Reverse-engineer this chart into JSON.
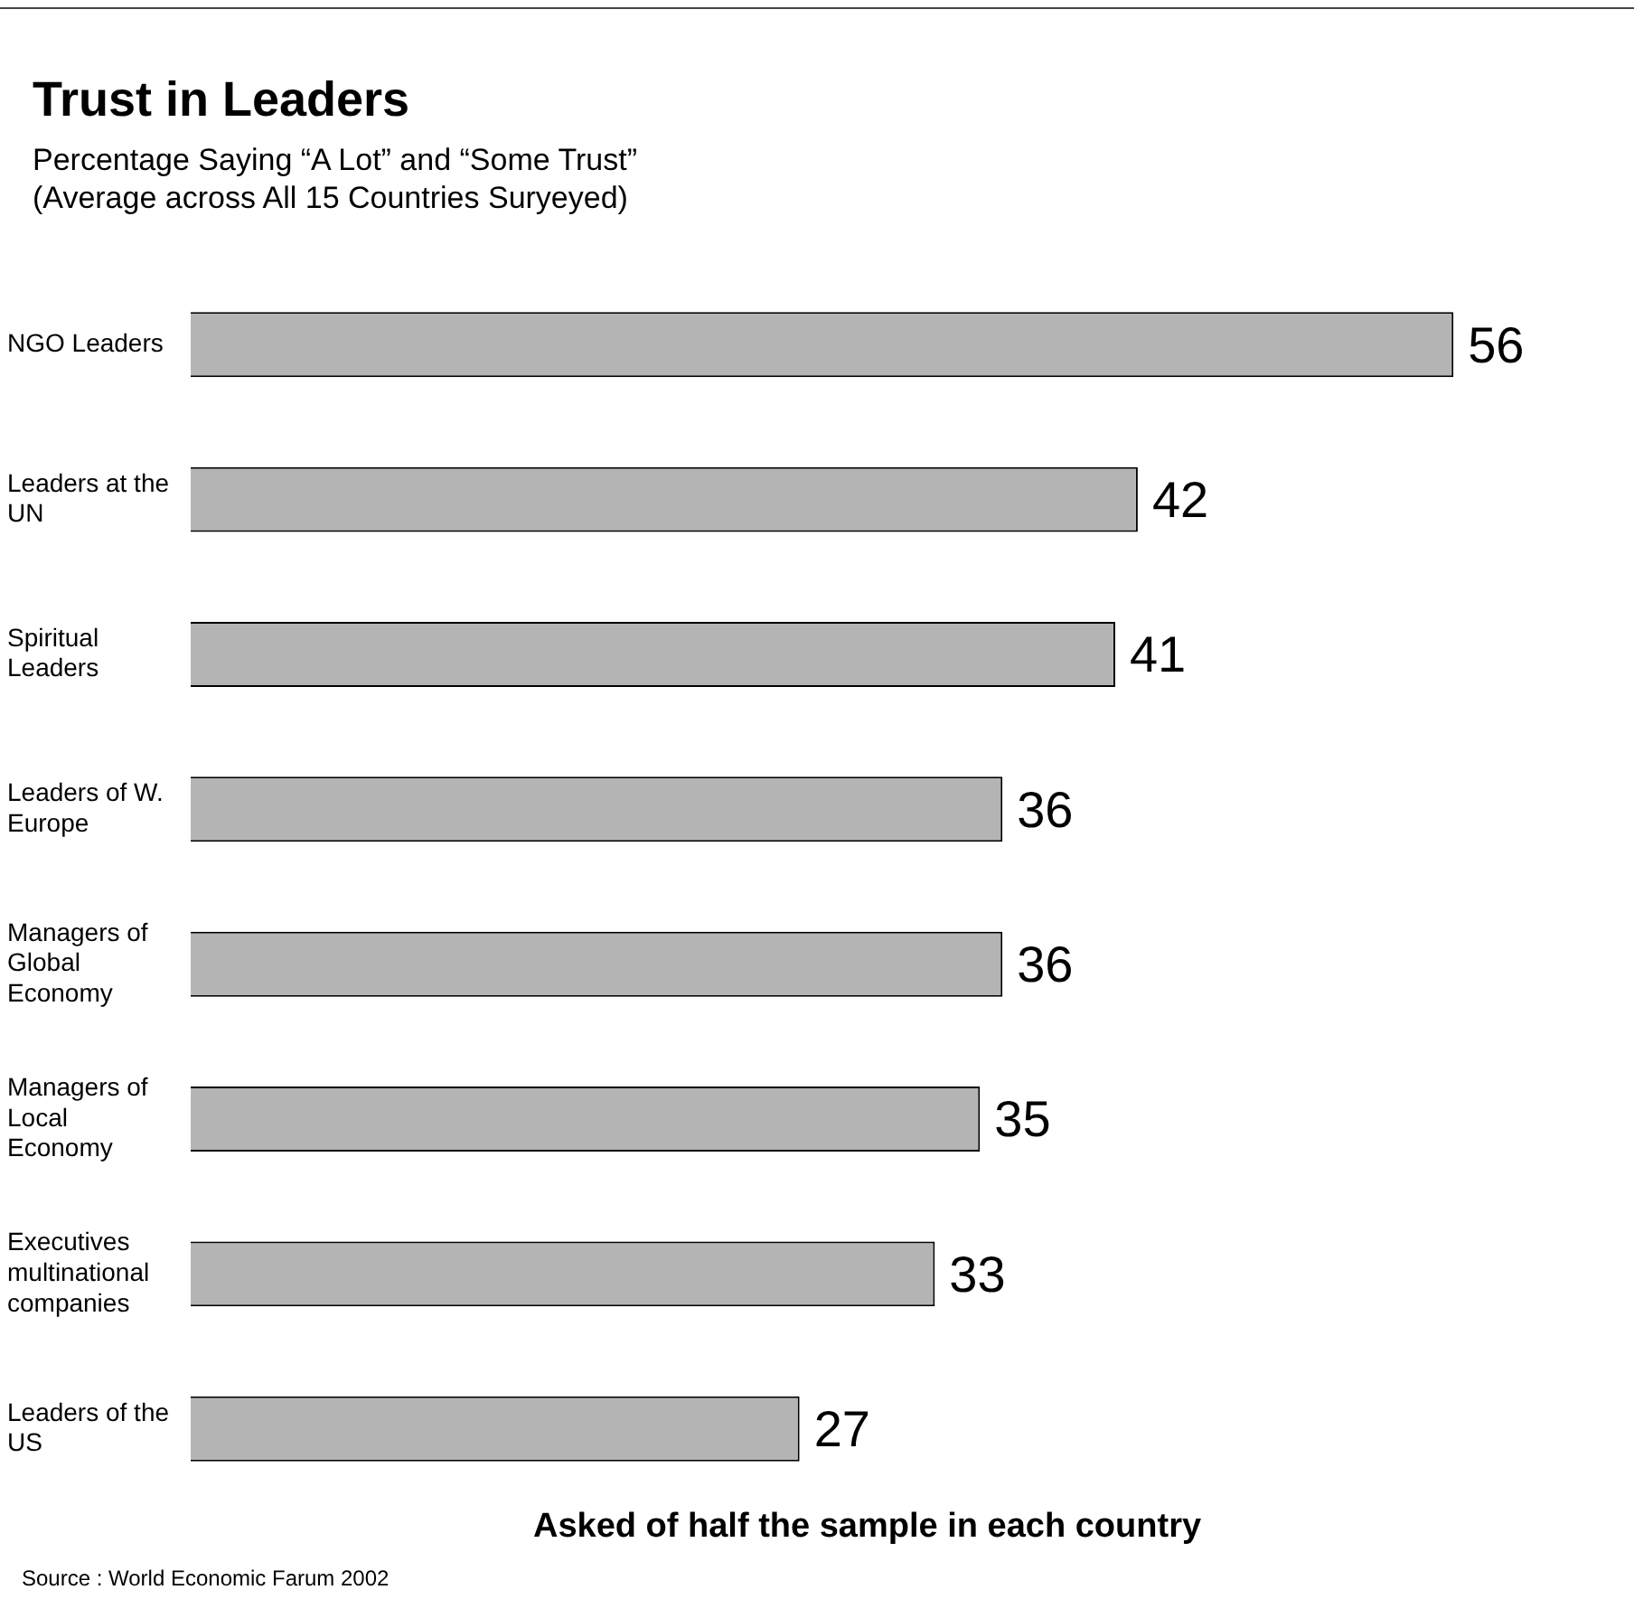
{
  "chart_data": {
    "type": "bar",
    "orientation": "horizontal",
    "title": "Trust in Leaders",
    "subtitle": "Percentage Saying “A Lot” and “Some Trust”\n(Average across All 15 Countries Suryeyed)",
    "xlabel": "Asked of half the sample in each country",
    "categories": [
      "NGO Leaders",
      "Leaders at the UN",
      "Spiritual Leaders",
      "Leaders of W. Europe",
      "Managers of Global Economy",
      "Managers of Local Economy",
      "Executives multinational companies",
      "Leaders of the US"
    ],
    "values": [
      56,
      42,
      41,
      36,
      36,
      35,
      33,
      27
    ],
    "color": "#b4b4b4",
    "data_labels": true,
    "grid": false,
    "legend": false,
    "tick_labels": "y",
    "annotations": [
      "Source : World Economic Farum 2002"
    ]
  }
}
